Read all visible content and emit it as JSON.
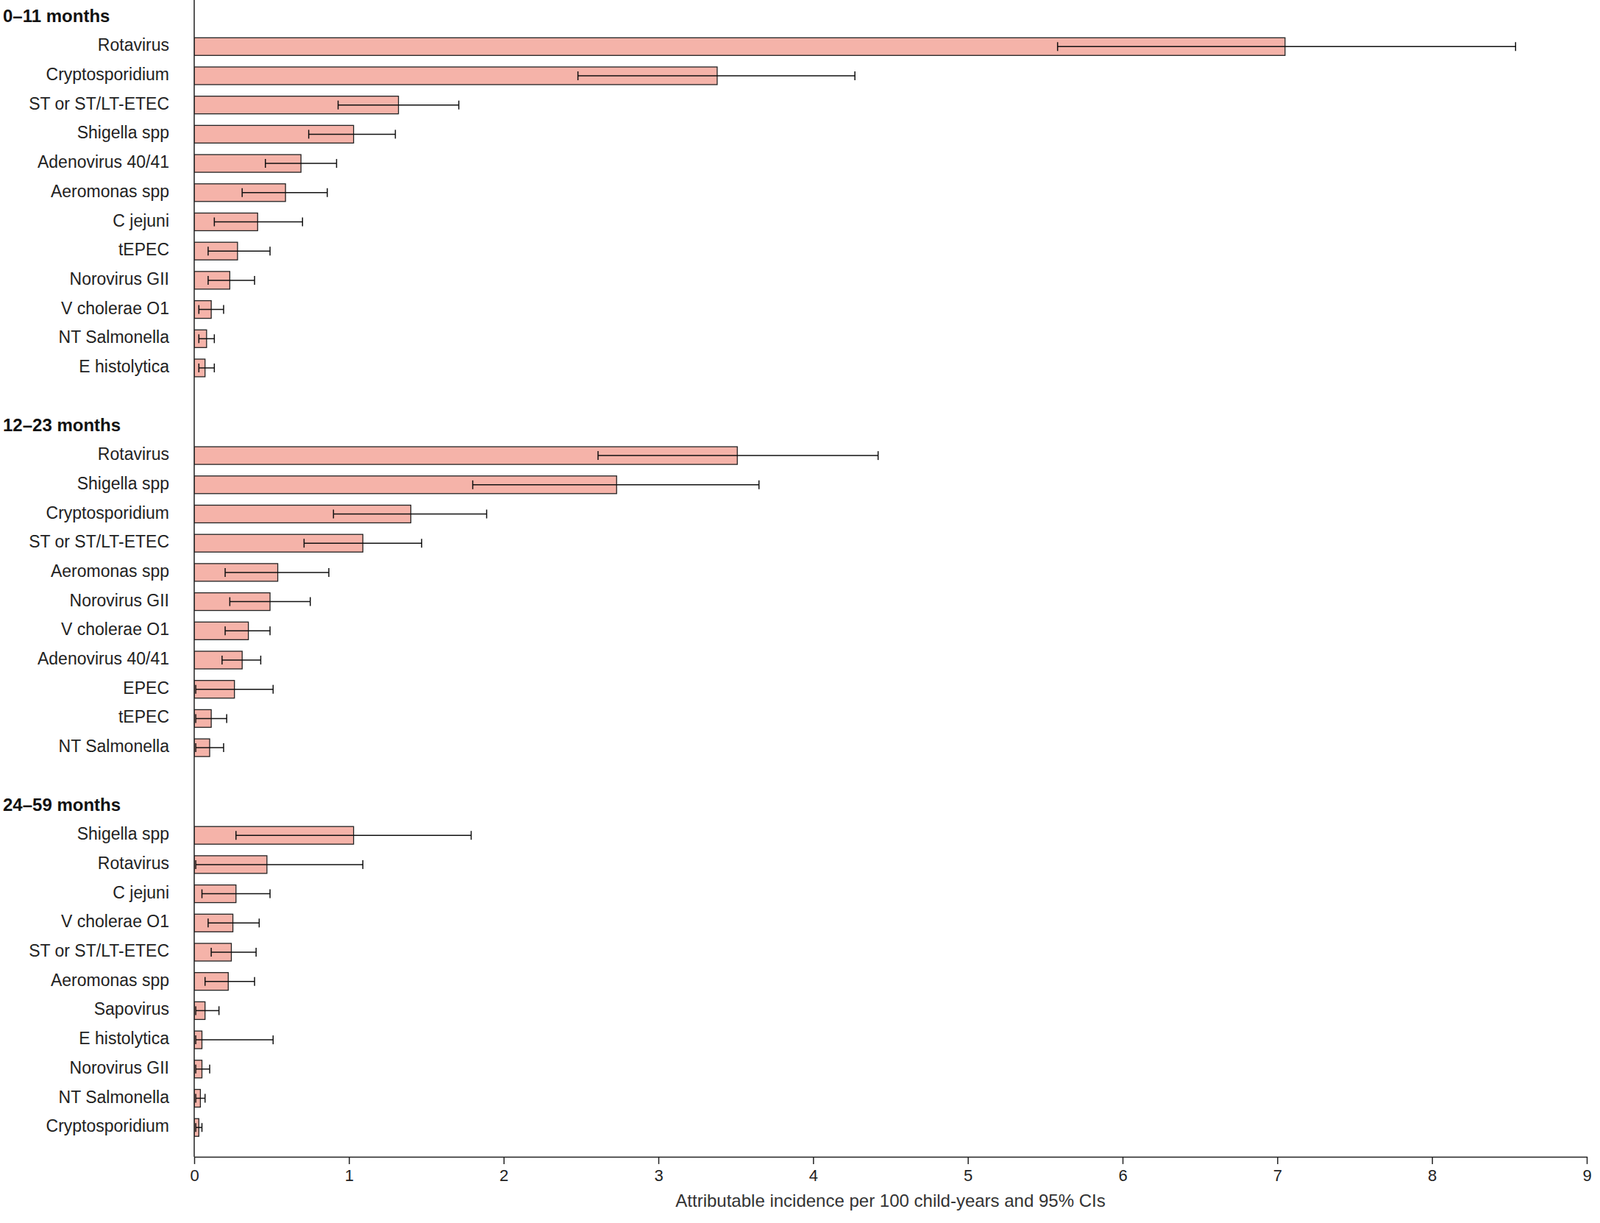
{
  "chart_data": {
    "type": "bar",
    "orientation": "horizontal",
    "x_label": "Attributable incidence per 100 child-years and 95% CIs",
    "xlim": [
      0,
      9
    ],
    "xticks": [
      0,
      1,
      2,
      3,
      4,
      5,
      6,
      7,
      8,
      9
    ],
    "color": "#f5b3a9",
    "groups": [
      {
        "title": "0–11 months",
        "categories": [
          "Rotavirus",
          "Cryptosporidium",
          "ST or ST/LT-ETEC",
          "Shigella spp",
          "Adenovirus 40/41",
          "Aeromonas spp",
          "C jejuni",
          "tEPEC",
          "Norovirus GII",
          "V cholerae O1",
          "NT Salmonella",
          "E histolytica"
        ],
        "values": [
          7.05,
          3.38,
          1.32,
          1.03,
          0.69,
          0.59,
          0.41,
          0.28,
          0.23,
          0.11,
          0.08,
          0.07
        ],
        "ci_low": [
          5.58,
          2.48,
          0.93,
          0.74,
          0.46,
          0.31,
          0.13,
          0.09,
          0.09,
          0.03,
          0.03,
          0.03
        ],
        "ci_high": [
          8.54,
          4.27,
          1.71,
          1.3,
          0.92,
          0.86,
          0.7,
          0.49,
          0.39,
          0.19,
          0.13,
          0.13
        ]
      },
      {
        "title": "12–23 months",
        "categories": [
          "Rotavirus",
          "Shigella spp",
          "Cryptosporidium",
          "ST or ST/LT-ETEC",
          "Aeromonas spp",
          "Norovirus GII",
          "V cholerae O1",
          "Adenovirus 40/41",
          "EPEC",
          "tEPEC",
          "NT Salmonella"
        ],
        "values": [
          3.51,
          2.73,
          1.4,
          1.09,
          0.54,
          0.49,
          0.35,
          0.31,
          0.26,
          0.11,
          0.1
        ],
        "ci_low": [
          2.61,
          1.8,
          0.9,
          0.71,
          0.2,
          0.23,
          0.2,
          0.18,
          0.01,
          0.01,
          0.01
        ],
        "ci_high": [
          4.42,
          3.65,
          1.89,
          1.47,
          0.87,
          0.75,
          0.49,
          0.43,
          0.51,
          0.21,
          0.19
        ]
      },
      {
        "title": "24–59 months",
        "categories": [
          "Shigella spp",
          "Rotavirus",
          "C jejuni",
          "V cholerae O1",
          "ST or ST/LT-ETEC",
          "Aeromonas spp",
          "Sapovirus",
          "E histolytica",
          "Norovirus GII",
          "NT Salmonella",
          "Cryptosporidium"
        ],
        "values": [
          1.03,
          0.47,
          0.27,
          0.25,
          0.24,
          0.22,
          0.07,
          0.05,
          0.05,
          0.04,
          0.03
        ],
        "ci_low": [
          0.27,
          0.01,
          0.05,
          0.09,
          0.11,
          0.07,
          0.01,
          0.01,
          0.01,
          0.01,
          0.01
        ],
        "ci_high": [
          1.79,
          1.09,
          0.49,
          0.42,
          0.4,
          0.39,
          0.16,
          0.51,
          0.1,
          0.07,
          0.05
        ]
      }
    ]
  }
}
